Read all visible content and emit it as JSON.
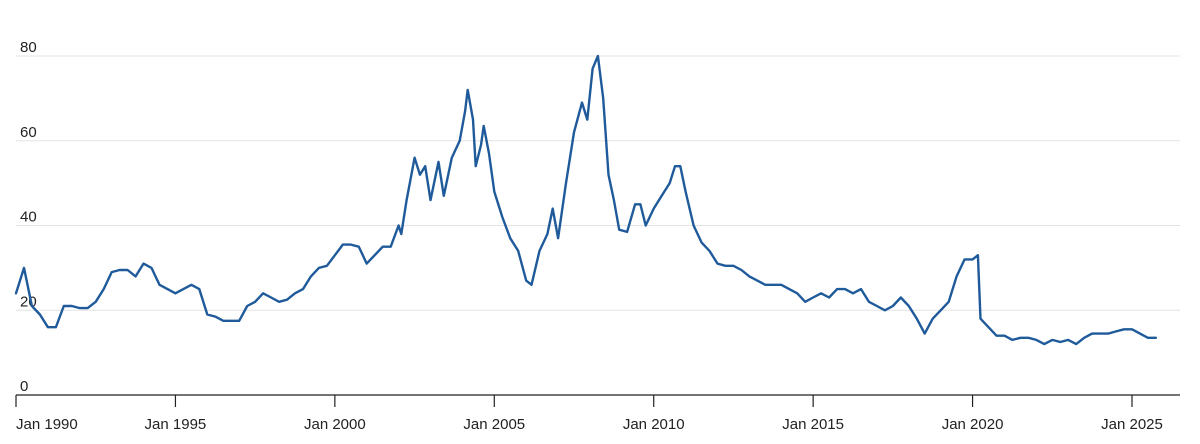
{
  "colors": {
    "series": "#1f5a9a",
    "grid": "#e3e3e3",
    "axis": "#222222",
    "text": "#222222"
  },
  "chart_data": {
    "type": "line",
    "title": "",
    "xlabel": "",
    "ylabel": "",
    "grid": true,
    "ylim": [
      0,
      80
    ],
    "xlim": [
      "1989-01",
      "2026-01"
    ],
    "y_ticks": [
      0,
      20,
      40,
      60,
      80
    ],
    "x_ticks": [
      {
        "date": "1990-01",
        "label": "Jan 1990"
      },
      {
        "date": "1995-01",
        "label": "Jan 1995"
      },
      {
        "date": "2000-01",
        "label": "Jan 2000"
      },
      {
        "date": "2005-01",
        "label": "Jan 2005"
      },
      {
        "date": "2010-01",
        "label": "Jan 2010"
      },
      {
        "date": "2015-01",
        "label": "Jan 2015"
      },
      {
        "date": "2020-01",
        "label": "Jan 2020"
      },
      {
        "date": "2025-01",
        "label": "Jan 2025"
      }
    ],
    "series": [
      {
        "points": [
          [
            "1990-01",
            24
          ],
          [
            "1990-04",
            30
          ],
          [
            "1990-07",
            21
          ],
          [
            "1990-10",
            19
          ],
          [
            "1991-01",
            16
          ],
          [
            "1991-04",
            16
          ],
          [
            "1991-07",
            21
          ],
          [
            "1991-10",
            21
          ],
          [
            "1992-01",
            20.5
          ],
          [
            "1992-04",
            20.5
          ],
          [
            "1992-07",
            22
          ],
          [
            "1992-10",
            25
          ],
          [
            "1993-01",
            29
          ],
          [
            "1993-04",
            29.5
          ],
          [
            "1993-07",
            29.5
          ],
          [
            "1993-10",
            28
          ],
          [
            "1994-01",
            31
          ],
          [
            "1994-04",
            30
          ],
          [
            "1994-07",
            26
          ],
          [
            "1994-10",
            25
          ],
          [
            "1995-01",
            24
          ],
          [
            "1995-04",
            25
          ],
          [
            "1995-07",
            26
          ],
          [
            "1995-10",
            25
          ],
          [
            "1996-01",
            19
          ],
          [
            "1996-04",
            18.5
          ],
          [
            "1996-07",
            17.5
          ],
          [
            "1996-10",
            17.5
          ],
          [
            "1997-01",
            17.5
          ],
          [
            "1997-04",
            21
          ],
          [
            "1997-07",
            22
          ],
          [
            "1997-10",
            24
          ],
          [
            "1998-01",
            23
          ],
          [
            "1998-04",
            22
          ],
          [
            "1998-07",
            22.5
          ],
          [
            "1998-10",
            24
          ],
          [
            "1999-01",
            25
          ],
          [
            "1999-04",
            28
          ],
          [
            "1999-07",
            30
          ],
          [
            "1999-10",
            30.5
          ],
          [
            "2000-01",
            33
          ],
          [
            "2000-04",
            35.5
          ],
          [
            "2000-07",
            35.5
          ],
          [
            "2000-10",
            35
          ],
          [
            "2001-01",
            31
          ],
          [
            "2001-04",
            33
          ],
          [
            "2001-07",
            35
          ],
          [
            "2001-10",
            35
          ],
          [
            "2002-01",
            40
          ],
          [
            "2002-02",
            38
          ],
          [
            "2002-04",
            46
          ],
          [
            "2002-07",
            56
          ],
          [
            "2002-09",
            52
          ],
          [
            "2002-11",
            54
          ],
          [
            "2003-01",
            46
          ],
          [
            "2003-04",
            55
          ],
          [
            "2003-06",
            47
          ],
          [
            "2003-09",
            56
          ],
          [
            "2003-12",
            60
          ],
          [
            "2004-02",
            67
          ],
          [
            "2004-03",
            72
          ],
          [
            "2004-05",
            65
          ],
          [
            "2004-06",
            54
          ],
          [
            "2004-08",
            59
          ],
          [
            "2004-09",
            63.5
          ],
          [
            "2004-11",
            57
          ],
          [
            "2005-01",
            48
          ],
          [
            "2005-04",
            42
          ],
          [
            "2005-07",
            37
          ],
          [
            "2005-10",
            34
          ],
          [
            "2006-01",
            27
          ],
          [
            "2006-03",
            26
          ],
          [
            "2006-06",
            34
          ],
          [
            "2006-09",
            38
          ],
          [
            "2006-11",
            44
          ],
          [
            "2007-01",
            37
          ],
          [
            "2007-04",
            50
          ],
          [
            "2007-07",
            62
          ],
          [
            "2007-10",
            69
          ],
          [
            "2007-12",
            65
          ],
          [
            "2008-02",
            77
          ],
          [
            "2008-04",
            80
          ],
          [
            "2008-06",
            70
          ],
          [
            "2008-08",
            52
          ],
          [
            "2008-10",
            46
          ],
          [
            "2008-12",
            39
          ],
          [
            "2009-03",
            38.5
          ],
          [
            "2009-06",
            45
          ],
          [
            "2009-08",
            45
          ],
          [
            "2009-10",
            40
          ],
          [
            "2010-01",
            44
          ],
          [
            "2010-04",
            47
          ],
          [
            "2010-07",
            50
          ],
          [
            "2010-09",
            54
          ],
          [
            "2010-11",
            54
          ],
          [
            "2011-01",
            48
          ],
          [
            "2011-04",
            40
          ],
          [
            "2011-07",
            36
          ],
          [
            "2011-10",
            34
          ],
          [
            "2012-01",
            31
          ],
          [
            "2012-04",
            30.5
          ],
          [
            "2012-07",
            30.5
          ],
          [
            "2012-10",
            29.5
          ],
          [
            "2013-01",
            28
          ],
          [
            "2013-04",
            27
          ],
          [
            "2013-07",
            26
          ],
          [
            "2013-10",
            26
          ],
          [
            "2014-01",
            26
          ],
          [
            "2014-04",
            25
          ],
          [
            "2014-07",
            24
          ],
          [
            "2014-10",
            22
          ],
          [
            "2015-01",
            23
          ],
          [
            "2015-04",
            24
          ],
          [
            "2015-07",
            23
          ],
          [
            "2015-10",
            25
          ],
          [
            "2016-01",
            25
          ],
          [
            "2016-04",
            24
          ],
          [
            "2016-07",
            25
          ],
          [
            "2016-10",
            22
          ],
          [
            "2017-01",
            21
          ],
          [
            "2017-04",
            20
          ],
          [
            "2017-07",
            21
          ],
          [
            "2017-10",
            23
          ],
          [
            "2018-01",
            21
          ],
          [
            "2018-04",
            18
          ],
          [
            "2018-07",
            14.5
          ],
          [
            "2018-10",
            18
          ],
          [
            "2019-01",
            20
          ],
          [
            "2019-04",
            22
          ],
          [
            "2019-07",
            28
          ],
          [
            "2019-10",
            32
          ],
          [
            "2020-01",
            32
          ],
          [
            "2020-03",
            33
          ],
          [
            "2020-04",
            18
          ],
          [
            "2020-07",
            16
          ],
          [
            "2020-10",
            14
          ],
          [
            "2021-01",
            14
          ],
          [
            "2021-04",
            13
          ],
          [
            "2021-07",
            13.5
          ],
          [
            "2021-10",
            13.5
          ],
          [
            "2022-01",
            13
          ],
          [
            "2022-04",
            12
          ],
          [
            "2022-07",
            13
          ],
          [
            "2022-10",
            12.5
          ],
          [
            "2023-01",
            13
          ],
          [
            "2023-04",
            12
          ],
          [
            "2023-07",
            13.5
          ],
          [
            "2023-10",
            14.5
          ],
          [
            "2024-01",
            14.5
          ],
          [
            "2024-04",
            14.5
          ],
          [
            "2024-07",
            15
          ],
          [
            "2024-10",
            15.5
          ],
          [
            "2025-01",
            15.5
          ],
          [
            "2025-04",
            14.5
          ],
          [
            "2025-07",
            13.5
          ],
          [
            "2025-10",
            13.5
          ]
        ]
      }
    ]
  }
}
